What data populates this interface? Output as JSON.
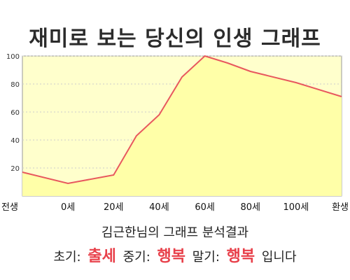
{
  "title": "재미로 보는 당신의 인생 그래프",
  "subtitle": "김근한님의 그래프 분석결과",
  "summary": {
    "early_label": "초기:",
    "early_value": "출세",
    "mid_label": "중기:",
    "mid_value": "행복",
    "late_label": "말기:",
    "late_value": "행복",
    "suffix": "입니다"
  },
  "colors": {
    "plot_fill": "#ffffcc",
    "area_fill": "#ffffa8",
    "line": "#e8585e",
    "highlight": "#e8404a",
    "grid": "#cccccc"
  },
  "chart_data": {
    "type": "area",
    "x": [
      "전생",
      "0세",
      "20세",
      "40세",
      "60세",
      "80세",
      "100세",
      "환생"
    ],
    "xticks": [
      "전생",
      "0세",
      "20세",
      "40세",
      "60세",
      "80세",
      "100세",
      "환생"
    ],
    "points": [
      {
        "x": 0.0,
        "y": 17
      },
      {
        "x": 1.0,
        "y": 9
      },
      {
        "x": 2.0,
        "y": 15
      },
      {
        "x": 2.5,
        "y": 43
      },
      {
        "x": 3.0,
        "y": 58
      },
      {
        "x": 3.5,
        "y": 85
      },
      {
        "x": 4.0,
        "y": 100
      },
      {
        "x": 4.5,
        "y": 95
      },
      {
        "x": 5.0,
        "y": 89
      },
      {
        "x": 6.0,
        "y": 81
      },
      {
        "x": 7.0,
        "y": 71
      }
    ],
    "yticks": [
      20,
      40,
      60,
      80,
      100
    ],
    "ylim": [
      0,
      100
    ],
    "grid": "horizontal dashed"
  }
}
